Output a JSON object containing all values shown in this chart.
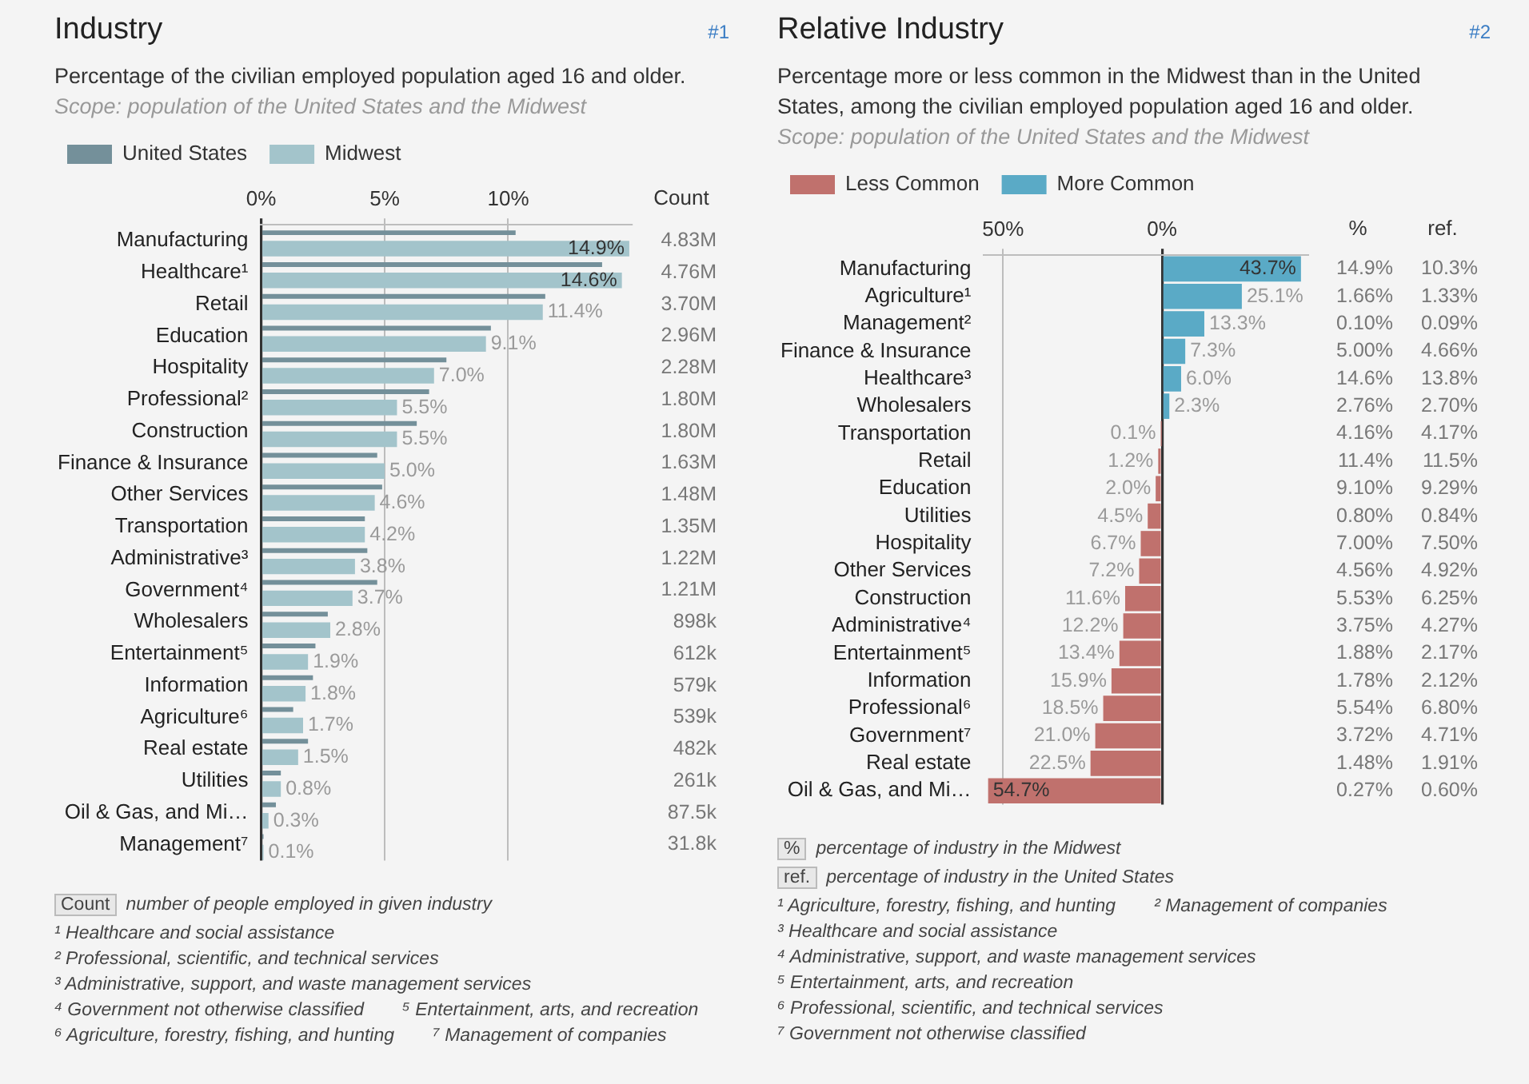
{
  "chart_data": [
    {
      "type": "bar",
      "orientation": "horizontal",
      "title": "Industry",
      "subtitle": "Percentage of the civilian employed population aged 16 and older.",
      "legend": "top left",
      "grid": "x",
      "categories": [
        "Manufacturing",
        "Healthcare¹",
        "Retail",
        "Education",
        "Hospitality",
        "Professional²",
        "Construction",
        "Finance & Insurance",
        "Other Services",
        "Transportation",
        "Administrative³",
        "Government⁴",
        "Wholesalers",
        "Entertainment⁵",
        "Information",
        "Agriculture⁶",
        "Real estate",
        "Utilities",
        "Oil & Gas, and Mi…",
        "Management⁷"
      ],
      "xlim": [
        0,
        15
      ],
      "xticks": [
        {
          "value": 0,
          "label": "0%"
        },
        {
          "value": 5,
          "label": "5%"
        },
        {
          "value": 10,
          "label": "10%"
        }
      ],
      "series": [
        {
          "name": "Midwest",
          "color": "#a3c4cb",
          "values": [
            14.9,
            14.6,
            11.4,
            9.1,
            7.0,
            5.5,
            5.5,
            5.0,
            4.6,
            4.2,
            3.8,
            3.7,
            2.8,
            1.9,
            1.8,
            1.7,
            1.5,
            0.8,
            0.3,
            0.1
          ],
          "value_labels": [
            "14.9%",
            "14.6%",
            "11.4%",
            "9.1%",
            "7.0%",
            "5.5%",
            "5.5%",
            "5.0%",
            "4.6%",
            "4.2%",
            "3.8%",
            "3.7%",
            "2.8%",
            "1.9%",
            "1.8%",
            "1.7%",
            "1.5%",
            "0.8%",
            "0.3%",
            "0.1%"
          ]
        },
        {
          "name": "United States",
          "color": "#74909a",
          "values": [
            10.3,
            13.8,
            11.5,
            9.3,
            7.5,
            6.8,
            6.3,
            4.7,
            4.9,
            4.2,
            4.3,
            4.7,
            2.7,
            2.2,
            2.1,
            1.3,
            1.9,
            0.8,
            0.6,
            0.1
          ]
        }
      ],
      "annotations": [
        "#1",
        "Scope: population of the United States and the Midwest",
        "Count",
        "number of people employed in given industry",
        "¹ Healthcare and social assistance",
        "² Professional, scientific, and technical services",
        "³ Administrative, support, and waste management services",
        "⁴ Government not otherwise classified",
        "⁵ Entertainment, arts, and recreation",
        "⁶ Agriculture, forestry, fishing, and hunting",
        "⁷ Management of companies",
        "4.83M",
        "4.76M",
        "3.70M",
        "2.96M",
        "2.28M",
        "1.80M",
        "1.80M",
        "1.63M",
        "1.48M",
        "1.35M",
        "1.22M",
        "1.21M",
        "898k",
        "612k",
        "579k",
        "539k",
        "482k",
        "261k",
        "87.5k",
        "31.8k"
      ]
    },
    {
      "type": "bar",
      "orientation": "horizontal",
      "title": "Relative Industry",
      "subtitle": "Percentage more or less common in the Midwest than in the United States, among the civilian employed population aged 16 and older.",
      "legend": "top left",
      "grid": "x",
      "categories": [
        "Manufacturing",
        "Agriculture¹",
        "Management²",
        "Finance & Insurance",
        "Healthcare³",
        "Wholesalers",
        "Transportation",
        "Retail",
        "Education",
        "Utilities",
        "Hospitality",
        "Other Services",
        "Construction",
        "Administrative⁴",
        "Entertainment⁵",
        "Information",
        "Professional⁶",
        "Government⁷",
        "Real estate",
        "Oil & Gas, and Mi…"
      ],
      "xlim": [
        -56,
        46
      ],
      "xticks": [
        {
          "value": -50,
          "label": "50%"
        },
        {
          "value": 0,
          "label": "0%"
        }
      ],
      "series": [
        {
          "name": "Less Common",
          "color": "#c0716d",
          "values": [
            null,
            null,
            null,
            null,
            null,
            null,
            0.1,
            1.2,
            2.0,
            4.5,
            6.7,
            7.2,
            11.6,
            12.2,
            13.4,
            15.9,
            18.5,
            21.0,
            22.5,
            54.7
          ],
          "base": [
            null,
            null,
            null,
            null,
            null,
            null,
            -0.1,
            -1.2,
            -2.0,
            -4.5,
            -6.7,
            -7.2,
            -11.6,
            -12.2,
            -13.4,
            -15.9,
            -18.5,
            -21.0,
            -22.5,
            -54.7
          ],
          "value_labels": [
            null,
            null,
            null,
            null,
            null,
            null,
            "0.1%",
            "1.2%",
            "2.0%",
            "4.5%",
            "6.7%",
            "7.2%",
            "11.6%",
            "12.2%",
            "13.4%",
            "15.9%",
            "18.5%",
            "21.0%",
            "22.5%",
            "54.7%"
          ]
        },
        {
          "name": "More Common",
          "color": "#5aaac6",
          "values": [
            43.7,
            25.1,
            13.3,
            7.3,
            6.0,
            2.3,
            null,
            null,
            null,
            null,
            null,
            null,
            null,
            null,
            null,
            null,
            null,
            null,
            null,
            null
          ],
          "value_labels": [
            "43.7%",
            "25.1%",
            "13.3%",
            "7.3%",
            "6.0%",
            "2.3%",
            null,
            null,
            null,
            null,
            null,
            null,
            null,
            null,
            null,
            null,
            null,
            null,
            null,
            null
          ]
        }
      ],
      "annotations": [
        "#2",
        "Scope: population of the United States and the Midwest",
        "%",
        "ref.",
        "percentage of industry in the Midwest",
        "percentage of industry in the United States",
        "¹ Agriculture, forestry, fishing, and hunting",
        "² Management of companies",
        "³ Healthcare and social assistance",
        "⁴ Administrative, support, and waste management services",
        "⁵ Entertainment, arts, and recreation",
        "⁶ Professional, scientific, and technical services",
        "⁷ Government not otherwise classified",
        "14.9%",
        "1.66%",
        "0.10%",
        "5.00%",
        "14.6%",
        "2.76%",
        "4.16%",
        "11.4%",
        "9.10%",
        "0.80%",
        "7.00%",
        "4.56%",
        "5.53%",
        "3.75%",
        "1.88%",
        "1.78%",
        "5.54%",
        "3.72%",
        "1.48%",
        "0.27%",
        "10.3%",
        "1.33%",
        "0.09%",
        "4.66%",
        "13.8%",
        "2.70%",
        "4.17%",
        "11.5%",
        "9.29%",
        "0.84%",
        "7.50%",
        "4.92%",
        "6.25%",
        "4.27%",
        "2.17%",
        "2.12%",
        "6.80%",
        "4.71%",
        "1.91%",
        "0.60%"
      ]
    }
  ]
}
